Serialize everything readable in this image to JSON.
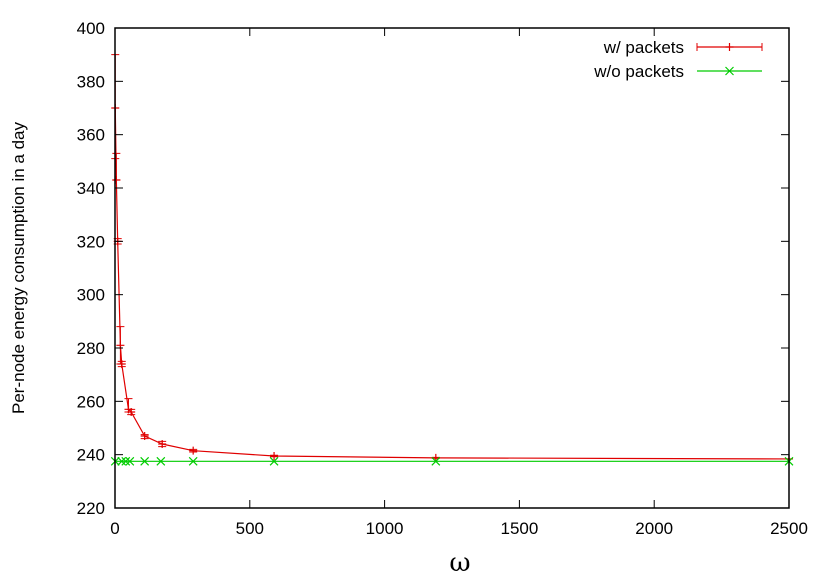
{
  "chart_data": {
    "type": "line",
    "xlabel": "ω",
    "ylabel": "Per-node energy consumption in a day",
    "xlim": [
      0,
      2500
    ],
    "ylim": [
      220,
      400
    ],
    "xticks": [
      0,
      500,
      1000,
      1500,
      2000,
      2500
    ],
    "yticks": [
      220,
      240,
      260,
      280,
      300,
      320,
      340,
      360,
      380,
      400
    ],
    "grid": false,
    "legend_position": "top-right",
    "series": [
      {
        "name": "w/ packets",
        "color": "#e00000",
        "marker": "plus",
        "error_bars": true,
        "points": [
          {
            "x": 1,
            "y": 370,
            "lo": 351,
            "hi": 390
          },
          {
            "x": 5,
            "y": 343,
            "lo": 343,
            "hi": 353
          },
          {
            "x": 10,
            "y": 320,
            "lo": 319,
            "hi": 321
          },
          {
            "x": 20,
            "y": 281,
            "lo": 274,
            "hi": 288
          },
          {
            "x": 25,
            "y": 274,
            "lo": 273,
            "hi": 275
          },
          {
            "x": 50,
            "y": 257,
            "lo": 256,
            "hi": 261
          },
          {
            "x": 60,
            "y": 256,
            "lo": 255,
            "hi": 257
          },
          {
            "x": 110,
            "y": 247,
            "lo": 246,
            "hi": 247.5
          },
          {
            "x": 175,
            "y": 244,
            "lo": 243,
            "hi": 245
          },
          {
            "x": 290,
            "y": 241.5,
            "lo": 241,
            "hi": 242
          },
          {
            "x": 590,
            "y": 239.5,
            "lo": 239.2,
            "hi": 239.8
          },
          {
            "x": 1190,
            "y": 238.8,
            "lo": 238.6,
            "hi": 239
          },
          {
            "x": 2500,
            "y": 238.4,
            "lo": 238.4,
            "hi": 238.4
          }
        ]
      },
      {
        "name": "w/o packets",
        "color": "#00cc00",
        "marker": "cross",
        "points": [
          {
            "x": 1,
            "y": 237.5
          },
          {
            "x": 25,
            "y": 237.5
          },
          {
            "x": 40,
            "y": 237.5
          },
          {
            "x": 55,
            "y": 237.5
          },
          {
            "x": 110,
            "y": 237.5
          },
          {
            "x": 170,
            "y": 237.5
          },
          {
            "x": 290,
            "y": 237.5
          },
          {
            "x": 590,
            "y": 237.5
          },
          {
            "x": 1190,
            "y": 237.5
          },
          {
            "x": 2500,
            "y": 237.5
          }
        ]
      }
    ]
  }
}
